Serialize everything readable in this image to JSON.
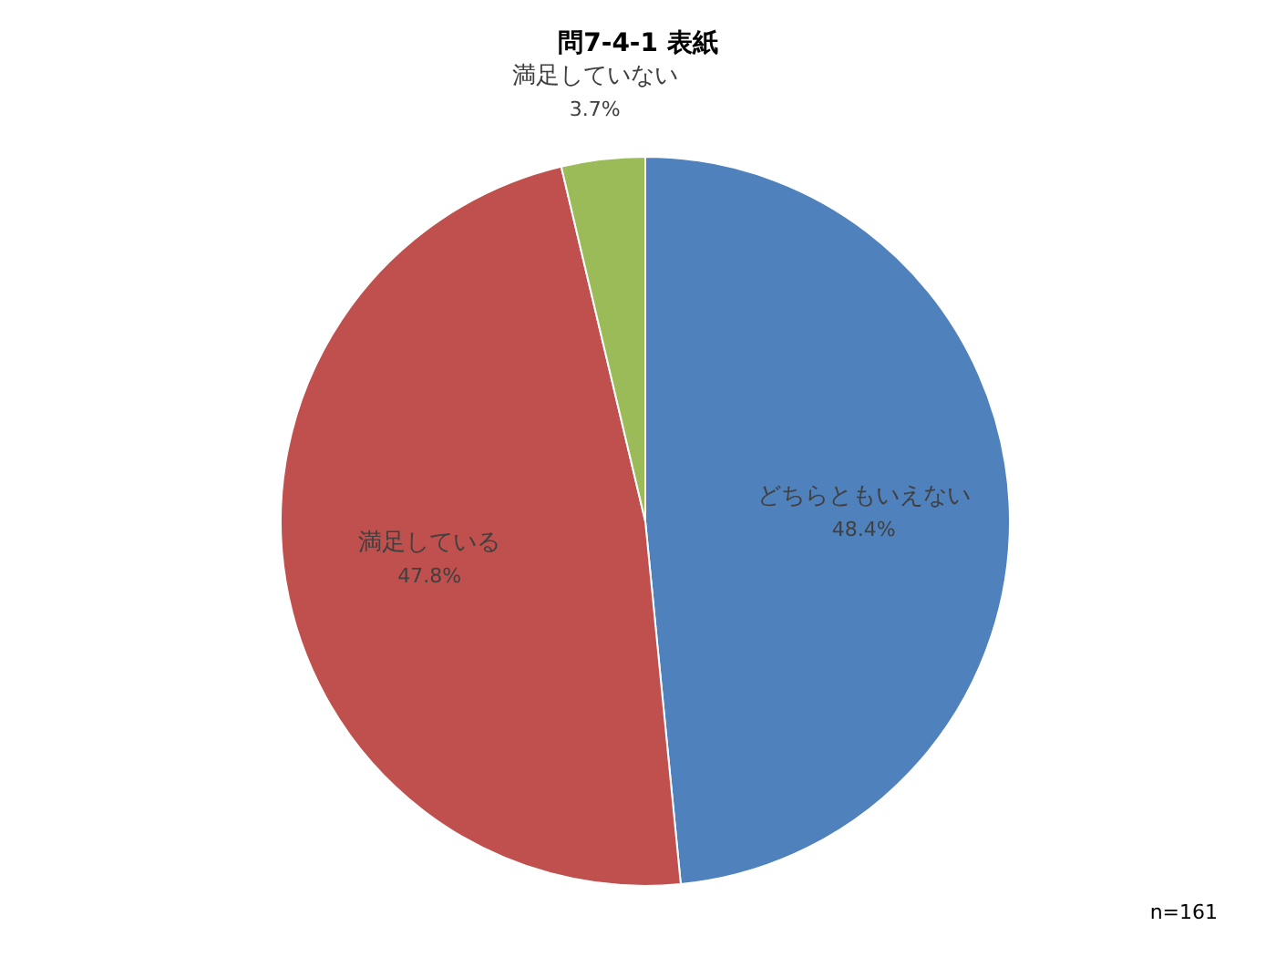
{
  "chart_data": {
    "type": "pie",
    "title": "問7-4-1 表紙",
    "categories": [
      "どちらともいえない",
      "満足している",
      "満足していない"
    ],
    "values": [
      48.4,
      47.8,
      3.7
    ],
    "value_labels": [
      "48.4%",
      "47.8%",
      "3.7%"
    ],
    "colors": [
      "#4f81bd",
      "#c0504d",
      "#9bbb59"
    ],
    "annotations": [
      "n=161"
    ],
    "legend": false
  }
}
